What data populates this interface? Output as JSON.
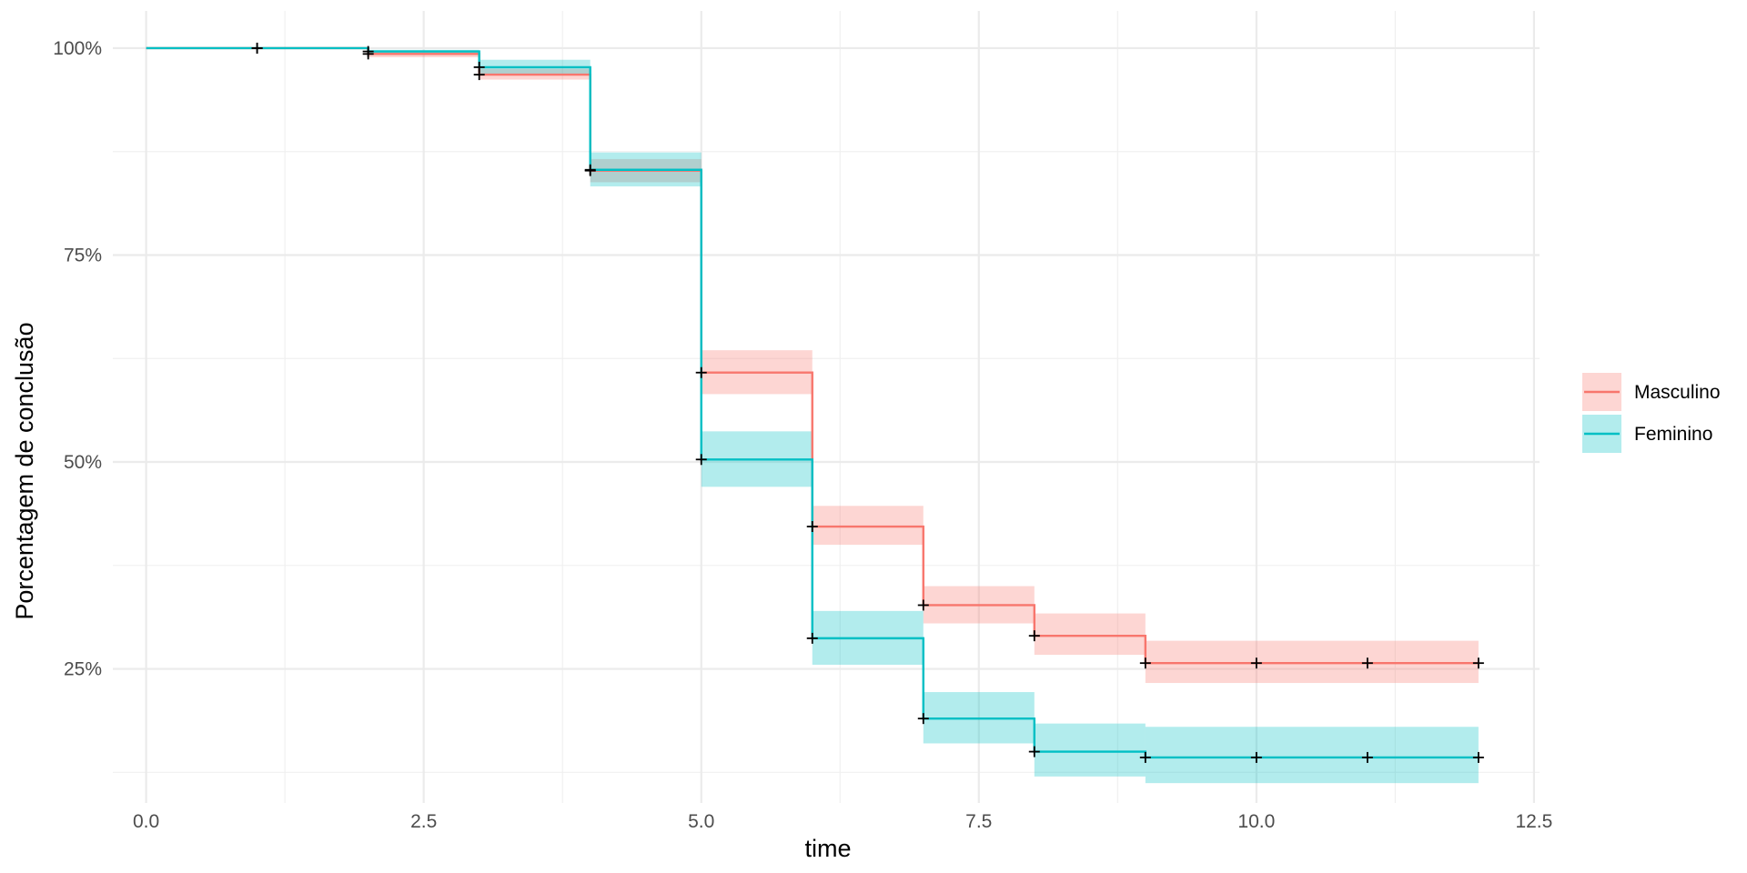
{
  "chart_data": {
    "type": "line",
    "step": true,
    "xlabel": "time",
    "ylabel": "Porcentagem de conclusão",
    "xlim": [
      -0.3,
      12.55
    ],
    "ylim": [
      0.088,
      1.045
    ],
    "x_ticks": [
      0,
      2.5,
      5,
      7.5,
      10,
      12.5
    ],
    "x_tick_labels": [
      "0.0",
      "2.5",
      "5.0",
      "7.5",
      "10.0",
      "12.5"
    ],
    "y_ticks": [
      0.25,
      0.5,
      0.75,
      1.0
    ],
    "y_tick_labels": [
      "25%",
      "50%",
      "75%",
      "100%"
    ],
    "grid": true,
    "legend_position": "right",
    "series": [
      {
        "name": "Masculino",
        "color": "#F8766D",
        "fill": "#F8766D",
        "time": [
          0,
          1,
          2,
          3,
          4,
          5,
          6,
          7,
          8,
          9,
          12
        ],
        "surv": [
          1.0,
          1.0,
          0.993,
          0.968,
          0.852,
          0.608,
          0.422,
          0.327,
          0.29,
          0.257,
          0.257
        ],
        "lower": [
          1.0,
          1.0,
          0.989,
          0.962,
          0.838,
          0.582,
          0.4,
          0.305,
          0.267,
          0.233,
          0.233
        ],
        "upper": [
          1.0,
          1.0,
          0.996,
          0.975,
          0.866,
          0.635,
          0.447,
          0.35,
          0.317,
          0.284,
          0.284
        ],
        "censor_times": [
          1,
          2,
          3,
          4,
          5,
          6,
          7,
          8,
          9,
          10,
          11,
          12
        ],
        "censor_surv": [
          1.0,
          0.993,
          0.968,
          0.852,
          0.608,
          0.422,
          0.327,
          0.29,
          0.257,
          0.257,
          0.257,
          0.257
        ]
      },
      {
        "name": "Feminino",
        "color": "#00BFC4",
        "fill": "#00BFC4",
        "time": [
          0,
          1,
          2,
          3,
          4,
          5,
          6,
          7,
          8,
          9,
          12
        ],
        "surv": [
          1.0,
          1.0,
          0.996,
          0.977,
          0.853,
          0.503,
          0.287,
          0.19,
          0.15,
          0.143,
          0.143
        ],
        "lower": [
          1.0,
          1.0,
          0.993,
          0.968,
          0.833,
          0.47,
          0.255,
          0.16,
          0.12,
          0.112,
          0.112
        ],
        "upper": [
          1.0,
          1.0,
          0.998,
          0.986,
          0.874,
          0.537,
          0.32,
          0.222,
          0.184,
          0.18,
          0.18
        ],
        "censor_times": [
          1,
          2,
          3,
          4,
          5,
          6,
          7,
          8,
          9,
          10,
          11,
          12
        ],
        "censor_surv": [
          1.0,
          0.996,
          0.977,
          0.853,
          0.503,
          0.287,
          0.19,
          0.15,
          0.143,
          0.143,
          0.143,
          0.143
        ]
      }
    ]
  }
}
